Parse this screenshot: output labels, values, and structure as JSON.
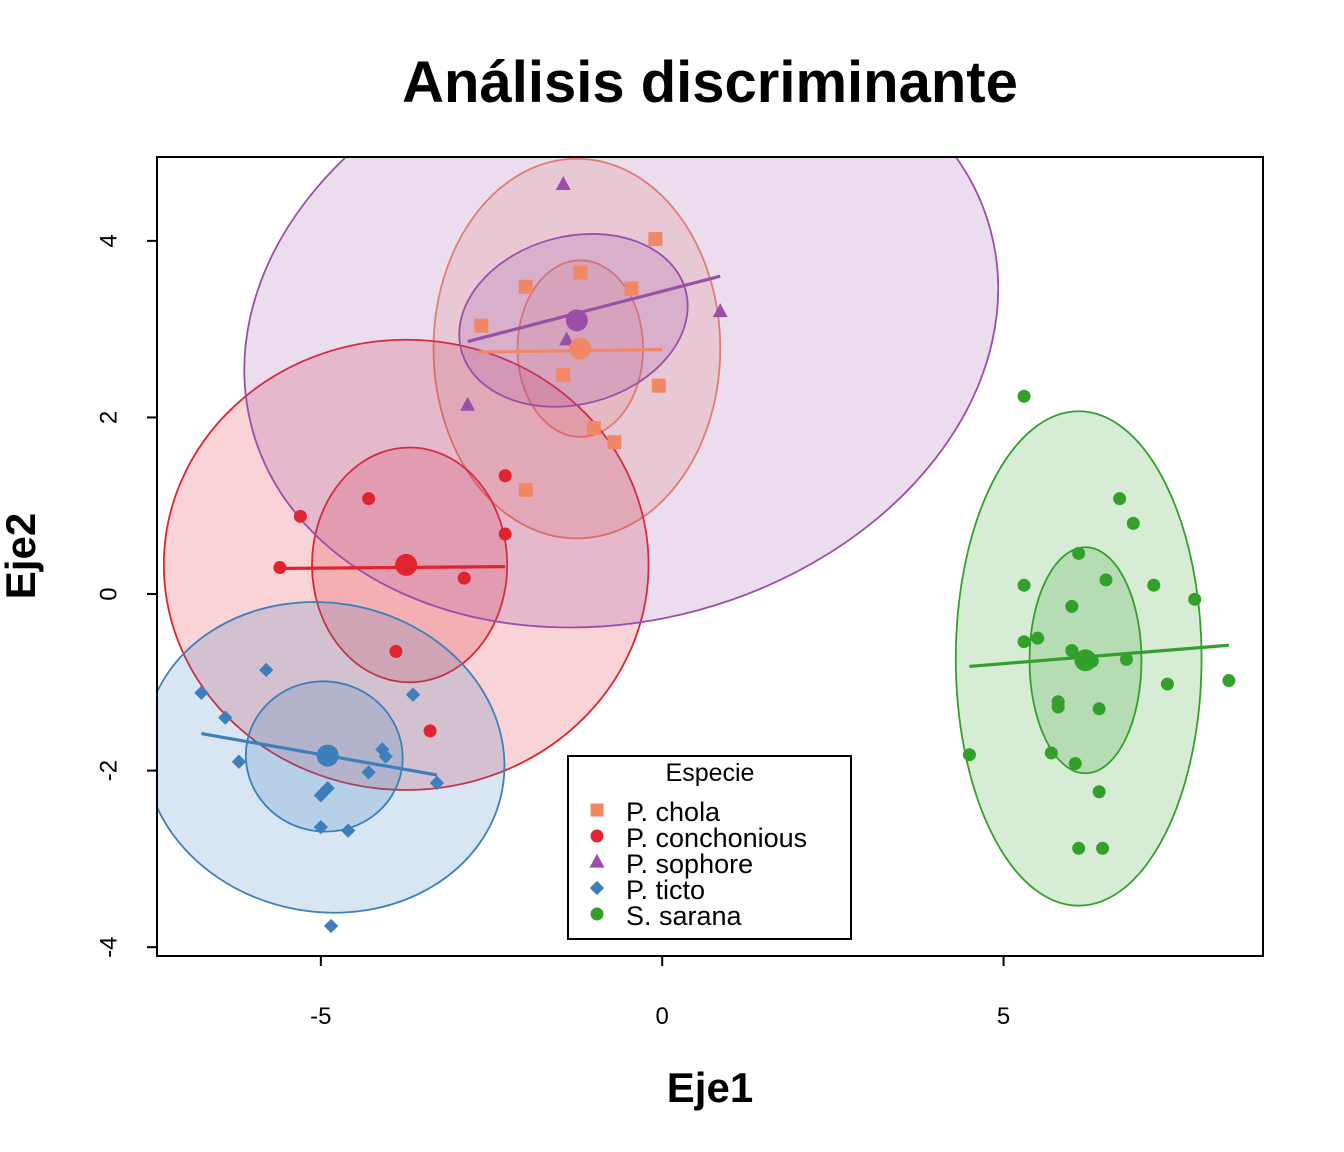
{
  "chart_data": {
    "type": "scatter",
    "title": "Análisis discriminante",
    "xlabel": "Eje1",
    "ylabel": "Eje2",
    "xlim": [
      -7.4,
      8.8
    ],
    "ylim": [
      -4.1,
      4.95
    ],
    "xticks": [
      "-5",
      "0",
      "5"
    ],
    "yticks": [
      "-4",
      "-2",
      "0",
      "2",
      "4"
    ],
    "xtick_values": [
      -5,
      0,
      5
    ],
    "ytick_values": [
      -4,
      -2,
      0,
      2,
      4
    ],
    "grid": false,
    "legend": {
      "title": "Especie",
      "placement": "bottom-center"
    },
    "series": [
      {
        "name": "P. chola",
        "color": "#f08866",
        "marker": "square",
        "centroid": [
          -1.2,
          2.78
        ],
        "regression": [
          [
            -2.7,
            2.74
          ],
          [
            0.0,
            2.77
          ]
        ],
        "ellipses": [
          {
            "cx": -1.2,
            "cy": 2.78,
            "rx": 0.92,
            "ry": 1.0,
            "angle": 0
          },
          {
            "cx": -1.25,
            "cy": 2.78,
            "rx": 2.1,
            "ry": 2.15,
            "angle": 0
          }
        ],
        "points": [
          [
            -0.1,
            4.02
          ],
          [
            -1.2,
            3.64
          ],
          [
            -2.0,
            3.48
          ],
          [
            -0.45,
            3.46
          ],
          [
            -2.65,
            3.04
          ],
          [
            -1.45,
            2.48
          ],
          [
            -0.05,
            2.36
          ],
          [
            -1.0,
            1.88
          ],
          [
            -0.7,
            1.72
          ],
          [
            -2.0,
            1.18
          ]
        ]
      },
      {
        "name": "P. conchonious",
        "color": "#e0242f",
        "marker": "circle",
        "centroid": [
          -3.75,
          0.33
        ],
        "regression": [
          [
            -5.6,
            0.29
          ],
          [
            -2.3,
            0.31
          ]
        ],
        "ellipses": [
          {
            "cx": -3.7,
            "cy": 0.33,
            "rx": 1.43,
            "ry": 1.33,
            "angle": 0
          },
          {
            "cx": -3.75,
            "cy": 0.33,
            "rx": 3.55,
            "ry": 2.55,
            "angle": 0
          }
        ],
        "points": [
          [
            -4.3,
            1.08
          ],
          [
            -5.3,
            0.88
          ],
          [
            -2.3,
            0.68
          ],
          [
            -5.6,
            0.3
          ],
          [
            -2.9,
            0.18
          ],
          [
            -3.9,
            -0.65
          ],
          [
            -3.4,
            -1.55
          ],
          [
            -2.3,
            1.34
          ]
        ]
      },
      {
        "name": "P. sophore",
        "color": "#9a4fa8",
        "marker": "triangle",
        "centroid": [
          -1.25,
          3.1
        ],
        "regression": [
          [
            -2.85,
            2.86
          ],
          [
            0.85,
            3.6
          ]
        ],
        "ellipses": [
          {
            "cx": -1.3,
            "cy": 3.1,
            "rx": 1.7,
            "ry": 0.95,
            "angle": 15
          },
          {
            "cx": -0.6,
            "cy": 3.0,
            "rx": 5.6,
            "ry": 3.3,
            "angle": 15
          }
        ],
        "points": [
          [
            -1.45,
            4.64
          ],
          [
            0.85,
            3.2
          ],
          [
            -1.4,
            2.88
          ],
          [
            -2.85,
            2.14
          ]
        ]
      },
      {
        "name": "P. ticto",
        "color": "#3d7fbd",
        "marker": "diamond",
        "centroid": [
          -4.9,
          -1.83
        ],
        "regression": [
          [
            -6.75,
            -1.58
          ],
          [
            -3.3,
            -2.05
          ]
        ],
        "ellipses": [
          {
            "cx": -4.95,
            "cy": -1.84,
            "rx": 1.15,
            "ry": 0.85,
            "angle": -10
          },
          {
            "cx": -4.95,
            "cy": -1.85,
            "rx": 2.65,
            "ry": 1.75,
            "angle": -10
          }
        ],
        "points": [
          [
            -5.8,
            -0.86
          ],
          [
            -6.75,
            -1.12
          ],
          [
            -3.65,
            -1.14
          ],
          [
            -6.4,
            -1.4
          ],
          [
            -4.1,
            -1.76
          ],
          [
            -4.05,
            -1.84
          ],
          [
            -6.2,
            -1.9
          ],
          [
            -4.3,
            -2.02
          ],
          [
            -4.9,
            -2.2
          ],
          [
            -5.0,
            -2.28
          ],
          [
            -3.3,
            -2.14
          ],
          [
            -5.0,
            -2.64
          ],
          [
            -4.6,
            -2.68
          ],
          [
            -4.85,
            -3.76
          ]
        ]
      },
      {
        "name": "S. sarana",
        "color": "#33a02c",
        "marker": "circle",
        "centroid": [
          6.2,
          -0.75
        ],
        "regression": [
          [
            4.5,
            -0.82
          ],
          [
            8.3,
            -0.58
          ]
        ],
        "ellipses": [
          {
            "cx": 6.2,
            "cy": -0.75,
            "rx": 0.82,
            "ry": 1.28,
            "angle": 0
          },
          {
            "cx": 6.1,
            "cy": -0.73,
            "rx": 1.8,
            "ry": 2.8,
            "angle": 0
          }
        ],
        "points": [
          [
            5.3,
            2.24
          ],
          [
            6.7,
            1.08
          ],
          [
            6.9,
            0.8
          ],
          [
            6.1,
            0.46
          ],
          [
            6.5,
            0.16
          ],
          [
            5.3,
            0.1
          ],
          [
            7.2,
            0.1
          ],
          [
            7.8,
            -0.06
          ],
          [
            6.0,
            -0.14
          ],
          [
            5.5,
            -0.5
          ],
          [
            5.3,
            -0.54
          ],
          [
            6.0,
            -0.64
          ],
          [
            6.15,
            -0.72
          ],
          [
            6.3,
            -0.76
          ],
          [
            6.8,
            -0.74
          ],
          [
            7.4,
            -1.02
          ],
          [
            8.3,
            -0.98
          ],
          [
            5.8,
            -1.22
          ],
          [
            5.8,
            -1.28
          ],
          [
            6.4,
            -1.3
          ],
          [
            4.5,
            -1.82
          ],
          [
            5.7,
            -1.8
          ],
          [
            6.05,
            -1.92
          ],
          [
            6.4,
            -2.24
          ],
          [
            6.1,
            -2.88
          ],
          [
            6.45,
            -2.88
          ]
        ]
      }
    ]
  }
}
